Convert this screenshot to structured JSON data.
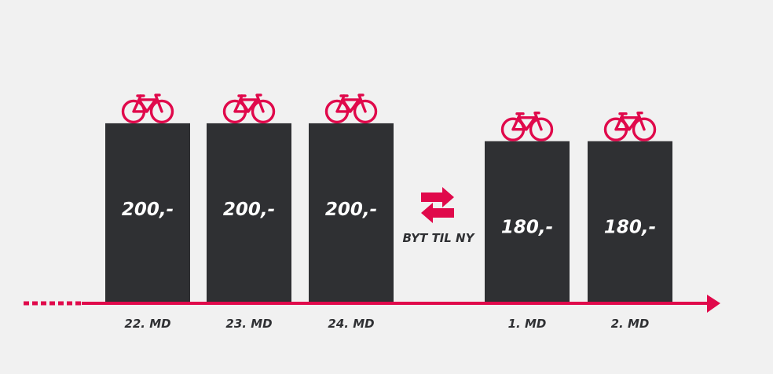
{
  "chart_data": {
    "type": "bar",
    "categories": [
      "22. MD",
      "23. MD",
      "24. MD",
      "1. MD",
      "2. MD"
    ],
    "values": [
      200,
      200,
      200,
      180,
      180
    ],
    "value_labels": [
      "200,-",
      "200,-",
      "200,-",
      "180,-",
      "180,-"
    ],
    "ylim": [
      0,
      235
    ],
    "grid": false,
    "legend": "none",
    "annotation": "BYT TIL NY",
    "bar_icon": "bicycle-icon",
    "colors": {
      "bar": "#2f3033",
      "accent": "#e0094b",
      "background": "#f1f1f1",
      "text": "#2f3033",
      "value_text": "#ffffff"
    }
  }
}
